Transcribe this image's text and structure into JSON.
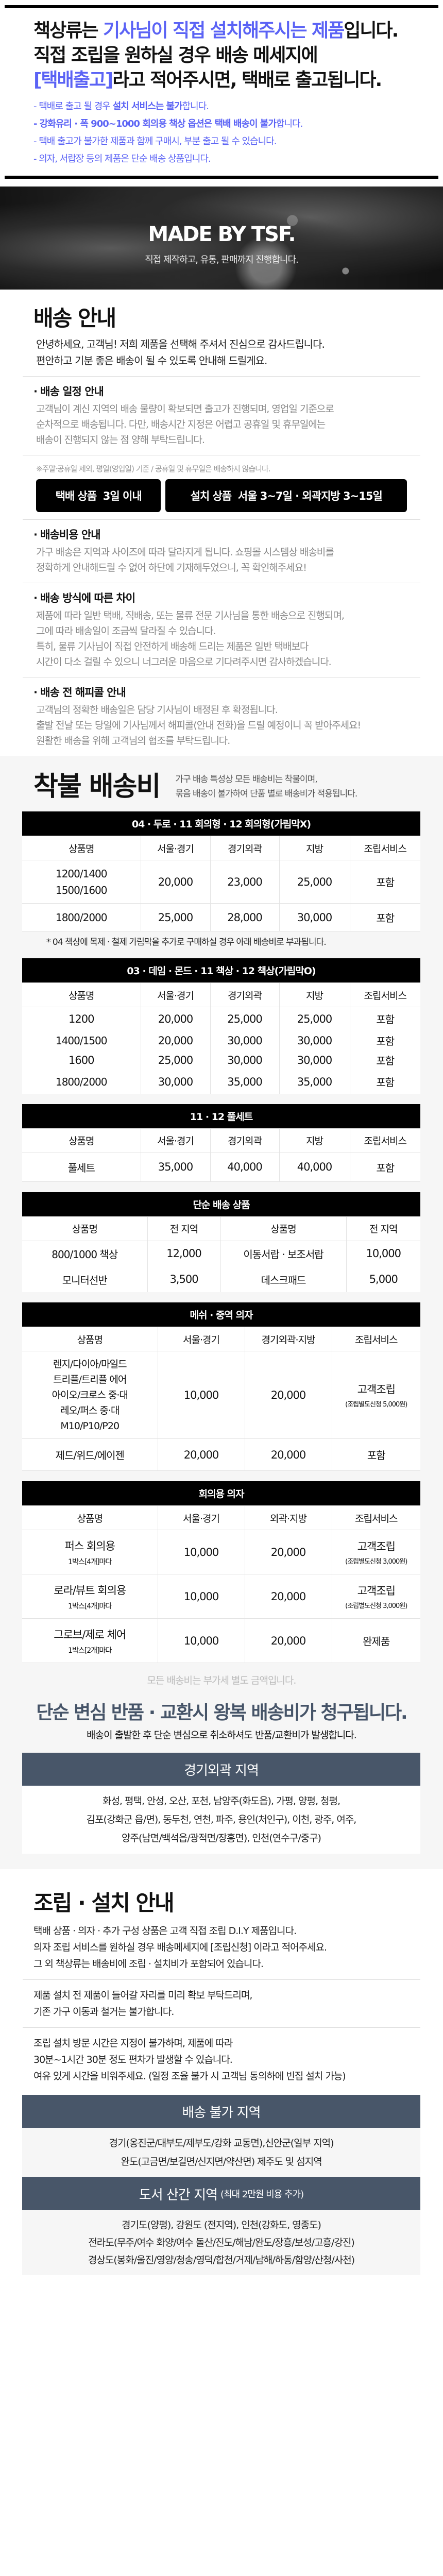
{
  "notice": {
    "headline_lines": [
      [
        {
          "text": "책상류는 ",
          "hl": false
        },
        {
          "text": "기사님이 직접 설치해주시는 제품",
          "hl": true
        },
        {
          "text": "입니다.",
          "hl": false
        }
      ],
      [
        {
          "text": "직접 조립을 원하실 경우 배송 메세지에",
          "hl": false
        }
      ],
      [
        {
          "text": "[택배출고]",
          "hl": true
        },
        {
          "text": "라고 적어주시면, 택배로 출고됩니다.",
          "hl": false
        }
      ]
    ],
    "bullets": [
      [
        {
          "text": "- 택배로 출고 될 경우 ",
          "b": false
        },
        {
          "text": "설치 서비스는 불가",
          "b": true
        },
        {
          "text": "합니다.",
          "b": false
        }
      ],
      [
        {
          "text": "- 강화유리 · 폭 900~1000 회의용 책상 옵션은 택배 배송이 불가",
          "b": true
        },
        {
          "text": "합니다.",
          "b": false
        }
      ],
      [
        {
          "text": "- 택배 출고가 불가한 제품과 함께 구매시, 부분 출고 될 수 있습니다.",
          "b": false
        }
      ],
      [
        {
          "text": "- 의자, 서랍장 등의 제품은 단순 배송 상품입니다.",
          "b": false
        }
      ]
    ],
    "accent_color": "#5b63f5"
  },
  "banner": {
    "title": "MADE BY TSF.",
    "subtitle": "직접 제작하고, 유통, 판매까지 진행합니다."
  },
  "shipping": {
    "title": "배송 안내",
    "intro": [
      "안녕하세요, 고객님! 저희 제품을 선택해 주셔서 진심으로 감사드립니다.",
      "편안하고 기분 좋은 배송이 될 수 있도록 안내해 드릴게요."
    ],
    "schedule": {
      "heading": "· 배송 일정 안내",
      "lines": [
        "고객님이 계신 지역의 배송 물량이 확보되면 출고가 진행되며, 영업일 기준으로",
        "순차적으로 배송됩니다. 다만, 배송시간 지정은 어렵고 공휴일 및 휴무일에는",
        "배송이 진행되지 않는 점 양해 부탁드립니다."
      ]
    },
    "note": "※주말·공휴일 제외, 평일(영업일) 기준 / 공휴일 및 휴무일은 배송하지 않습니다.",
    "badges": [
      "택배 상품  3일 이내",
      "설치 상품  서울 3~7일 · 외곽지방 3~15일"
    ],
    "cost": {
      "heading": "· 배송비용 안내",
      "lines": [
        "가구 배송은 지역과 사이즈에 따라 달라지게 됩니다. 쇼핑몰 시스템상 배송비를",
        "정확하게 안내해드릴 수 없어 하단에 기재해두었으니, 꼭 확인해주세요!"
      ]
    },
    "method": {
      "heading": "· 배송 방식에 따른 차이",
      "lines": [
        "제품에 따라 일반 택배, 직배송, 또는 물류 전문 기사님을 통한 배송으로 진행되며,",
        "그에 따라 배송일이 조금씩 달라질 수 있습니다.",
        "특히, 물류 기사님이 직접 안전하게 배송해 드리는 제품은 일반 택배보다",
        "시간이 다소 걸릴 수 있으니 너그러운 마음으로 기다려주시면 감사하겠습니다."
      ]
    },
    "happycall": {
      "heading": "· 배송 전 해피콜 안내",
      "lines": [
        "고객님의 정확한 배송일은 담당 기사님이 배정된 후 확정됩니다.",
        "출발 전날 또는 당일에 기사님께서 해피콜(안내 전화)을 드릴 예정이니 꼭 받아주세요!",
        "원활한 배송을 위해 고객님의 협조를 부탁드립니다."
      ]
    }
  },
  "fee": {
    "title": "착불 배송비",
    "desc": [
      "가구 배송 특성상 모든 배송비는 착불이며,",
      "묶음 배송이 불가하여 단품 별로 배송비가 적용됩니다."
    ],
    "tables": [
      {
        "title": "04 · 두로 · 11 회의형 · 12 회의형(가림막X)",
        "columns": [
          "상품명",
          "서울·경기",
          "경기외곽",
          "지방",
          "조립서비스"
        ],
        "rows": [
          [
            {
              "lines": [
                "1200/1400",
                "1500/1600"
              ]
            },
            "20,000",
            "23,000",
            "25,000",
            "포함"
          ],
          [
            "1800/2000",
            "25,000",
            "28,000",
            "30,000",
            "포함"
          ]
        ]
      },
      {
        "title": "03 · 데임 · 몬드 · 11 책상 · 12 책상(가림막O)",
        "columns": [
          "상품명",
          "서울·경기",
          "경기외곽",
          "지방",
          "조립서비스"
        ],
        "rows": [
          [
            "1200",
            "20,000",
            "25,000",
            "25,000",
            "포함"
          ],
          [
            "1400/1500",
            "20,000",
            "30,000",
            "30,000",
            "포함"
          ],
          [
            "1600",
            "25,000",
            "30,000",
            "30,000",
            "포함"
          ],
          [
            "1800/2000",
            "30,000",
            "35,000",
            "35,000",
            "포함"
          ]
        ]
      },
      {
        "title": "11 · 12 풀세트",
        "columns": [
          "상품명",
          "서울·경기",
          "경기외곽",
          "지방",
          "조립서비스"
        ],
        "rows": [
          [
            "풀세트",
            "35,000",
            "40,000",
            "40,000",
            "포함"
          ]
        ]
      },
      {
        "title": "단순 배송 상품",
        "columns": [
          "상품명",
          "전 지역",
          "상품명",
          "전 지역"
        ],
        "rows": [
          [
            "800/1000 책상",
            "12,000",
            "이동서랍 · 보조서랍",
            "10,000"
          ],
          [
            "모니터선반",
            "3,500",
            "데스크패드",
            "5,000"
          ]
        ]
      },
      {
        "title": "메쉬 · 중역 의자",
        "columns": [
          "상품명",
          "서울·경기",
          "경기외곽·지방",
          "조립서비스"
        ],
        "rows": [
          [
            {
              "lines": [
                "렌지/다이아/마일드",
                "트리플/트리플 에어",
                "아이오/크로스 중·대",
                "레오/퍼스 중·대",
                "M10/P10/P20"
              ]
            },
            "10,000",
            "20,000",
            {
              "main": "고객조립",
              "sub": "(조립별도신청 5,000원)"
            }
          ],
          [
            "제드/위드/에이젠",
            "20,000",
            "20,000",
            "포함"
          ]
        ]
      },
      {
        "title": "회의용 의자",
        "columns": [
          "상품명",
          "서울·경기",
          "외곽·지방",
          "조립서비스"
        ],
        "rows": [
          [
            {
              "main": "퍼스 회의용",
              "psub": "1박스[4개]마다"
            },
            "10,000",
            "20,000",
            {
              "main": "고객조립",
              "sub": "(조립별도신청 3,000원)"
            }
          ],
          [
            {
              "main": "로라/뷰트 회의용",
              "psub": "1박스[4개]마다"
            },
            "10,000",
            "20,000",
            {
              "main": "고객조립",
              "sub": "(조립별도신청 3,000원)"
            }
          ],
          [
            {
              "main": "그로브/제로 체어",
              "psub": "1박스[2개]마다"
            },
            "10,000",
            "20,000",
            "완제품"
          ]
        ]
      }
    ],
    "table1_note": "* 04 책상에 목제 · 철제 가림막을 추가로 구매하실 경우 아래 배송비로 부과됩니다.",
    "vat_note": "모든 배송비는 부가세 별도 금액입니다.",
    "return_title": "단순 변심 반품 · 교환시 왕복 배송비가 청구됩니다.",
    "return_desc": "배송이 출발한 후 단순 변심으로 취소하셔도 반품/교환비가 발생합니다.",
    "outer": {
      "title": "경기외곽 지역",
      "lines": [
        "화성, 평택, 안성, 오산, 포천, 남양주(화도읍), 가평, 양평, 청평,",
        "김포(강화군 읍/면), 동두천, 연천, 파주, 용인(처인구), 이천, 광주, 여주,",
        "양주(남면/백석읍/광적면/장흥면), 인천(연수구/중구)"
      ]
    },
    "header_color": "#485669"
  },
  "assembly": {
    "title": "조립 · 설치 안내",
    "p1": [
      "택배 상품 · 의자 · 추가 구성 상품은 고객 직접 조립 D.I.Y 제품입니다.",
      "의자 조립 서비스를 원하실 경우 배송메세지에 [조립신청] 이라고 적어주세요.",
      "그 외 책상류는 배송비에 조립 · 설치비가 포함되어 있습니다."
    ],
    "p2": [
      "제품 설치 전 제품이 들어갈 자리를 미리 확보 부탁드리며,",
      "기존 가구 이동과 철거는 불가합니다."
    ],
    "p3": [
      "조립 설치 방문 시간은 지정이 불가하며, 제품에 따라",
      "30분~1시간 30분 정도 편차가 발생할 수 있습니다.",
      "여유 있게 시간을 비워주세요. (일정 조율 불가 시 고객님 동의하에 빈집 설치 가능)"
    ],
    "nodelivery": {
      "title": "배송 불가 지역",
      "lines": [
        "경기(옹진군/대부도/제부도/강화 교동면),신안군(일부 지역)",
        "완도(고금면/보길면/신지면/약산면) 제주도 및 섬지역"
      ]
    },
    "remote": {
      "title": "도서 산간 지역",
      "title_note": "(최대 2만원 비용 추가)",
      "lines": [
        "경기도(양평), 강원도 (전지역), 인천(강화도, 영종도)",
        "전라도(무주/여수 화양/여수 돌산/진도/해남/완도/장흥/보성/고흥/강진)",
        "경상도(봉화/울진/영양/청송/영덕/합천/거제/남해/하동/함양/산청/사천)"
      ]
    }
  }
}
